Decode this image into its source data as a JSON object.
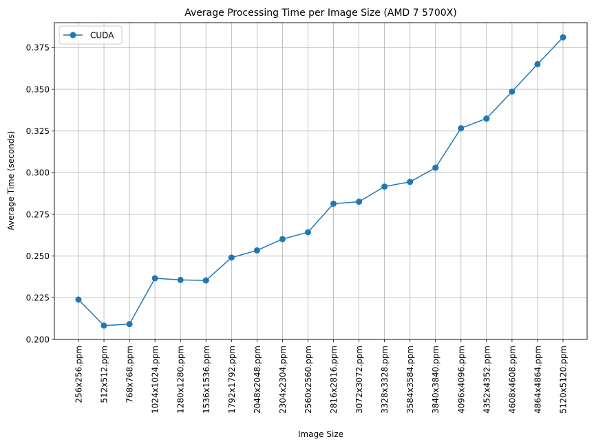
{
  "chart_data": {
    "type": "line",
    "title": "Average Processing Time per Image Size (AMD 7 5700X)",
    "xlabel": "Image Size",
    "ylabel": "Average Time (seconds)",
    "categories": [
      "256x256.ppm",
      "512x512.ppm",
      "768x768.ppm",
      "1024x1024.ppm",
      "1280x1280.ppm",
      "1536x1536.ppm",
      "1792x1792.ppm",
      "2048x2048.ppm",
      "2304x2304.ppm",
      "2560x2560.ppm",
      "2816x2816.ppm",
      "3072x3072.ppm",
      "3328x3328.ppm",
      "3584x3584.ppm",
      "3840x3840.ppm",
      "4096x4096.ppm",
      "4352x4352.ppm",
      "4608x4608.ppm",
      "4864x4864.ppm",
      "5120x5120.ppm"
    ],
    "series": [
      {
        "name": "CUDA",
        "color": "#1f77b4",
        "values": [
          0.2239,
          0.2083,
          0.2092,
          0.2367,
          0.2357,
          0.2354,
          0.2491,
          0.2534,
          0.2602,
          0.2643,
          0.2814,
          0.2826,
          0.2917,
          0.2945,
          0.303,
          0.3267,
          0.3325,
          0.3487,
          0.3651,
          0.3812
        ]
      }
    ],
    "ylim": [
      0.2,
      0.39
    ],
    "yticks": [
      0.2,
      0.225,
      0.25,
      0.275,
      0.3,
      0.325,
      0.35,
      0.375
    ],
    "ytick_labels": [
      "0.200",
      "0.225",
      "0.250",
      "0.275",
      "0.300",
      "0.325",
      "0.350",
      "0.375"
    ],
    "grid": true,
    "legend_position": "top-left"
  }
}
